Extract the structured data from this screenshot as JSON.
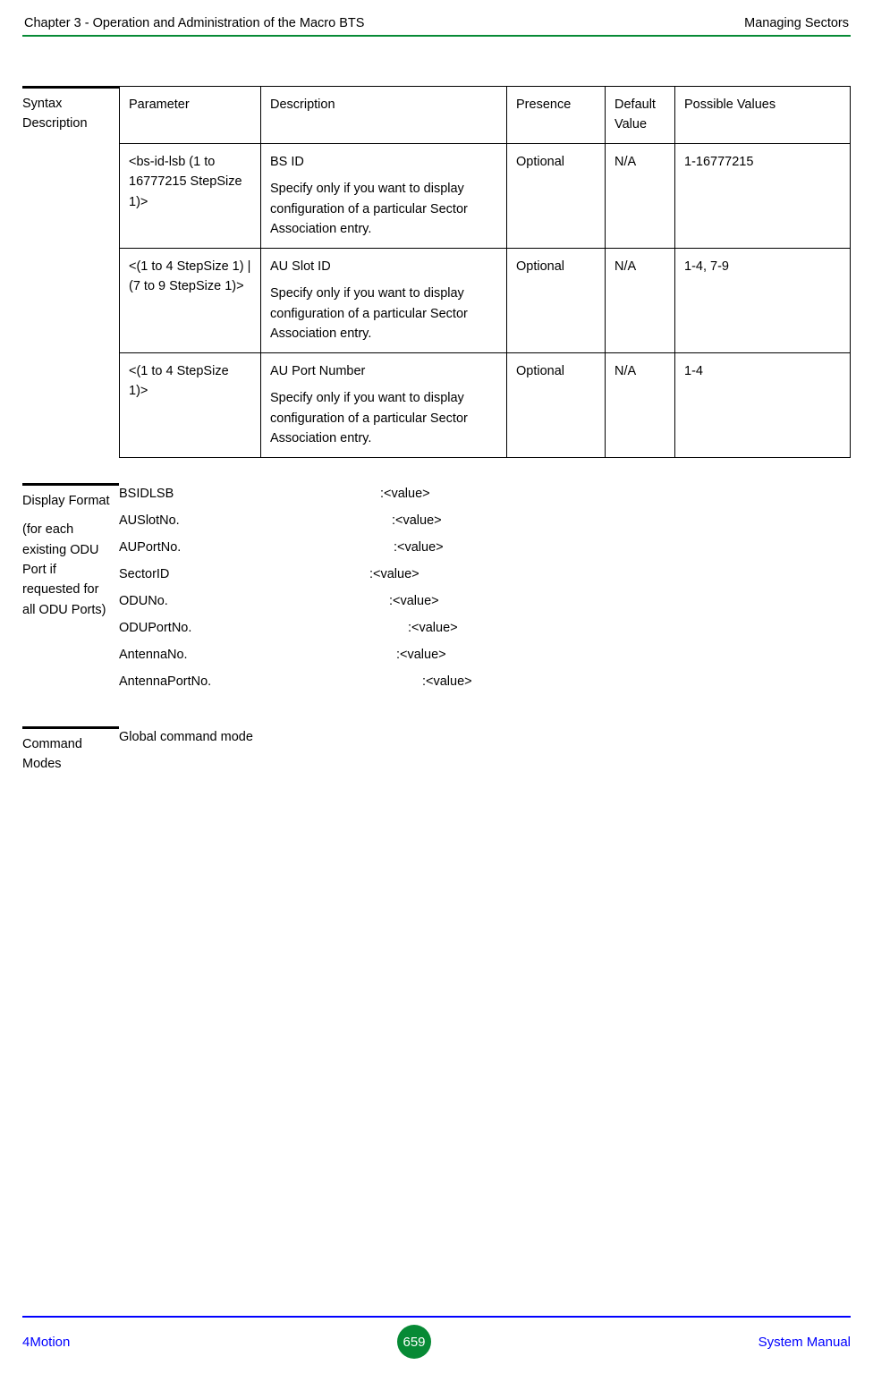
{
  "header": {
    "left": "Chapter 3 - Operation and Administration of the Macro BTS",
    "right": "Managing Sectors"
  },
  "sections": {
    "syntax": {
      "label": "Syntax Description"
    },
    "display": {
      "label_line1": "Display Format",
      "label_line2": "(for each existing ODU Port if requested for all ODU Ports)"
    },
    "cmd": {
      "label": "Command Modes",
      "body": "Global command mode"
    }
  },
  "table": {
    "headers": {
      "param": "Parameter",
      "desc": "Description",
      "pres": "Presence",
      "def": "Default Value",
      "poss": "Possible Values"
    },
    "rows": [
      {
        "param": "<bs-id-lsb (1 to 16777215 StepSize 1)>",
        "desc_title": "BS ID",
        "desc_body": "Specify only if you want to display configuration of a particular Sector Association entry.",
        "pres": "Optional",
        "def": "N/A",
        "poss": "1-16777215"
      },
      {
        "param": "<(1 to 4 StepSize 1) | (7 to 9 StepSize 1)>",
        "desc_title": "AU Slot ID",
        "desc_body": "Specify only if you want to display configuration of a particular Sector Association entry.",
        "pres": "Optional",
        "def": "N/A",
        "poss": "1-4, 7-9"
      },
      {
        "param": "<(1 to 4 StepSize 1)>",
        "desc_title": "AU Port Number",
        "desc_body": "Specify only if you want to display configuration of a particular Sector Association entry.",
        "pres": "Optional",
        "def": "N/A",
        "poss": "1-4"
      }
    ]
  },
  "display_rows": [
    {
      "label": "BSIDLSB",
      "left_w": 292,
      "value": ":<value>"
    },
    {
      "label": "AUSlotNo.",
      "left_w": 305,
      "value": ":<value>"
    },
    {
      "label": "AUPortNo.",
      "left_w": 307,
      "value": ":<value>"
    },
    {
      "label": "SectorID",
      "left_w": 280,
      "value": ":<value>"
    },
    {
      "label": "ODUNo.",
      "left_w": 302,
      "value": ":<value>"
    },
    {
      "label": "ODUPortNo.",
      "left_w": 323,
      "value": ":<value>"
    },
    {
      "label": "AntennaNo.",
      "left_w": 310,
      "value": ":<value>"
    },
    {
      "label": "AntennaPortNo.",
      "left_w": 339,
      "value": ":<value>"
    }
  ],
  "footer": {
    "left": "4Motion",
    "page": "659",
    "right": "System Manual"
  },
  "colors": {
    "green": "#078a35",
    "blue": "#0000ff"
  }
}
